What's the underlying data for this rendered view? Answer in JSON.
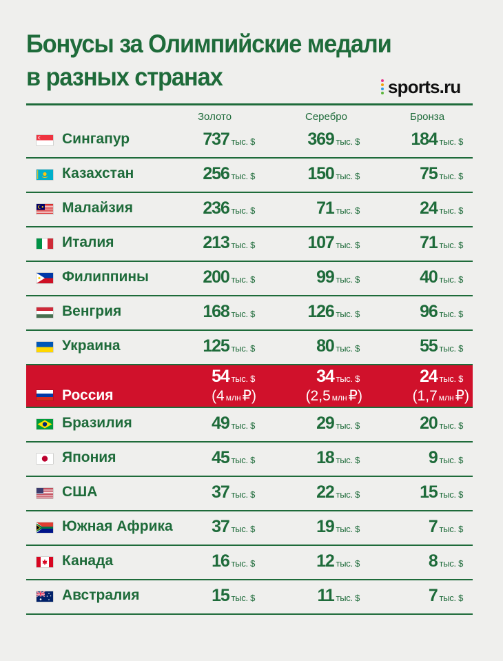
{
  "title": {
    "line1": "Бонусы за Олимпийские медали",
    "line2": "в разных странах"
  },
  "brand": {
    "name": "sports.ru",
    "dot_colors": [
      "#e8358a",
      "#f2a20c",
      "#2f9be4",
      "#5ab53a"
    ]
  },
  "colors": {
    "accent": "#1e6b3a",
    "highlight": "#d0112b",
    "background": "#efefed"
  },
  "columns": {
    "gold": "Золото",
    "silver": "Серебро",
    "bronze": "Бронза"
  },
  "unit": "тыс. $",
  "chart_data": {
    "type": "table",
    "title": "Бонусы за Олимпийские медали в разных странах",
    "columns": [
      "Золото",
      "Серебро",
      "Бронза"
    ],
    "value_unit": "тыс. $",
    "rows": [
      {
        "country": "Сингапур",
        "flag": "singapore-flag",
        "gold": "737",
        "silver": "369",
        "bronze": "184"
      },
      {
        "country": "Казахстан",
        "flag": "kazakhstan-flag",
        "gold": "256",
        "silver": "150",
        "bronze": "75"
      },
      {
        "country": "Малайзия",
        "flag": "malaysia-flag",
        "gold": "236",
        "silver": "71",
        "bronze": "24"
      },
      {
        "country": "Италия",
        "flag": "italy-flag",
        "gold": "213",
        "silver": "107",
        "bronze": "71"
      },
      {
        "country": "Филиппины",
        "flag": "philippines-flag",
        "gold": "200",
        "silver": "99",
        "bronze": "40"
      },
      {
        "country": "Венгрия",
        "flag": "hungary-flag",
        "gold": "168",
        "silver": "126",
        "bronze": "96"
      },
      {
        "country": "Украина",
        "flag": "ukraine-flag",
        "gold": "125",
        "silver": "80",
        "bronze": "55"
      },
      {
        "country": "Россия",
        "flag": "russia-flag",
        "gold": "54",
        "silver": "34",
        "bronze": "24",
        "highlight": true,
        "rub": {
          "gold": {
            "open": "(",
            "value": "4",
            "unit": "млн",
            "close": "₽)"
          },
          "silver": {
            "open": "(",
            "value": "2,5",
            "unit": "млн",
            "close": "₽)"
          },
          "bronze": {
            "open": "(",
            "value": "1,7",
            "unit": "млн",
            "close": "₽)"
          }
        }
      },
      {
        "country": "Бразилия",
        "flag": "brazil-flag",
        "gold": "49",
        "silver": "29",
        "bronze": "20"
      },
      {
        "country": "Япония",
        "flag": "japan-flag",
        "gold": "45",
        "silver": "18",
        "bronze": "9"
      },
      {
        "country": "США",
        "flag": "usa-flag",
        "gold": "37",
        "silver": "22",
        "bronze": "15"
      },
      {
        "country": "Южная Африка",
        "flag": "south-africa-flag",
        "gold": "37",
        "silver": "19",
        "bronze": "7"
      },
      {
        "country": "Канада",
        "flag": "canada-flag",
        "gold": "16",
        "silver": "12",
        "bronze": "8"
      },
      {
        "country": "Австралия",
        "flag": "australia-flag",
        "gold": "15",
        "silver": "11",
        "bronze": "7"
      }
    ]
  }
}
